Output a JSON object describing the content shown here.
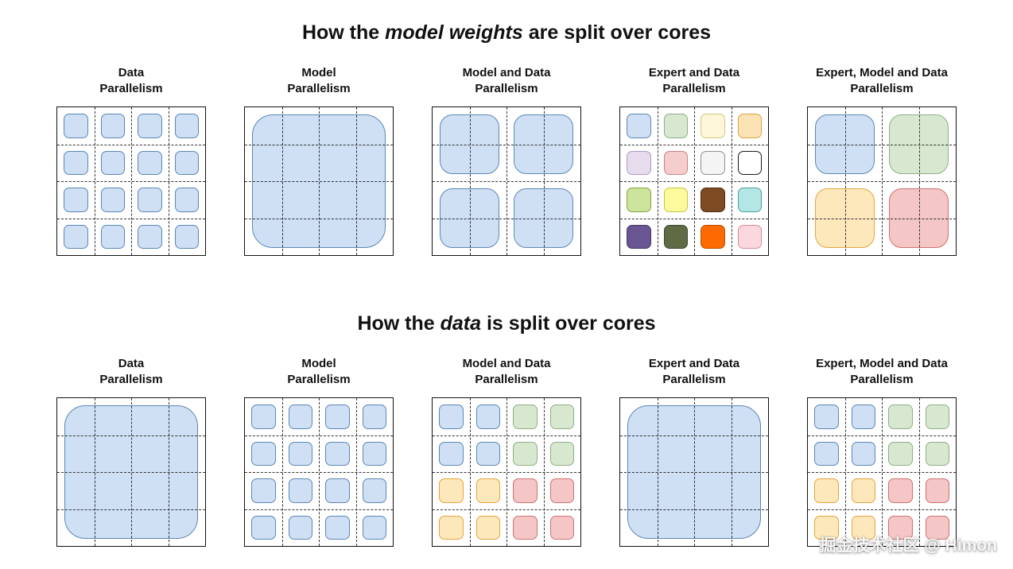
{
  "watermark": "掘金技术社区 @ Himon",
  "palette": {
    "blue": {
      "fill": "#cfe0f5",
      "border": "#5b87b5"
    },
    "green": {
      "fill": "#d8e8d0",
      "border": "#8fae85"
    },
    "cream": {
      "fill": "#fdf6d8",
      "border": "#d8c87e"
    },
    "peach": {
      "fill": "#fbe3b5",
      "border": "#e0a23e"
    },
    "lavender": {
      "fill": "#e6dcee",
      "border": "#af96c9"
    },
    "rose": {
      "fill": "#f5cdcd",
      "border": "#cb7f7f"
    },
    "lightgray": {
      "fill": "#f4f4f4",
      "border": "#8f8f8f"
    },
    "white": {
      "fill": "#ffffff",
      "border": "#1a1a1a"
    },
    "yellowgreen": {
      "fill": "#cde49d",
      "border": "#86a23e"
    },
    "yellow": {
      "fill": "#fbfa9d",
      "border": "#c9c33f"
    },
    "brown": {
      "fill": "#7e4a21",
      "border": "#4f2b10"
    },
    "cyan": {
      "fill": "#b2e7e6",
      "border": "#4f9ba0"
    },
    "purple": {
      "fill": "#6a5693",
      "border": "#453764"
    },
    "olive": {
      "fill": "#5e6b45",
      "border": "#3c4628"
    },
    "brightorange": {
      "fill": "#fd6a02",
      "border": "#b84d00"
    },
    "pink": {
      "fill": "#fad8de",
      "border": "#d98a9c"
    },
    "amber": {
      "fill": "#fde8bb",
      "border": "#e8a33d"
    },
    "red": {
      "fill": "#f5c6c6",
      "border": "#cf7171"
    }
  },
  "sections": [
    {
      "title": {
        "prefix": "How the ",
        "emphasis": "model weights",
        "suffix": " are split over cores"
      },
      "panels": [
        {
          "label_line1": "Data",
          "label_line2": "Parallelism",
          "pattern": {
            "kind": "uniform16",
            "color": "blue"
          }
        },
        {
          "label_line1": "Model",
          "label_line2": "Parallelism",
          "pattern": {
            "kind": "full",
            "color": "blue"
          }
        },
        {
          "label_line1": "Model and Data",
          "label_line2": "Parallelism",
          "pattern": {
            "kind": "quad",
            "colors": [
              "blue",
              "blue",
              "blue",
              "blue"
            ]
          }
        },
        {
          "label_line1": "Expert and Data",
          "label_line2": "Parallelism",
          "pattern": {
            "kind": "grid16",
            "colors": [
              [
                "blue",
                "green",
                "cream",
                "peach"
              ],
              [
                "lavender",
                "rose",
                "lightgray",
                "white"
              ],
              [
                "yellowgreen",
                "yellow",
                "brown",
                "cyan"
              ],
              [
                "purple",
                "olive",
                "brightorange",
                "pink"
              ]
            ]
          }
        },
        {
          "label_line1": "Expert, Model and Data",
          "label_line2": "Parallelism",
          "pattern": {
            "kind": "quad",
            "colors": [
              "blue",
              "green",
              "amber",
              "red"
            ]
          }
        }
      ]
    },
    {
      "title": {
        "prefix": "How the ",
        "emphasis": "data",
        "suffix": " is split over cores"
      },
      "panels": [
        {
          "label_line1": "Data",
          "label_line2": "Parallelism",
          "pattern": {
            "kind": "full",
            "color": "blue"
          }
        },
        {
          "label_line1": "Model",
          "label_line2": "Parallelism",
          "pattern": {
            "kind": "uniform16",
            "color": "blue"
          }
        },
        {
          "label_line1": "Model and Data",
          "label_line2": "Parallelism",
          "pattern": {
            "kind": "grid16",
            "colors": [
              [
                "blue",
                "blue",
                "green",
                "green"
              ],
              [
                "blue",
                "blue",
                "green",
                "green"
              ],
              [
                "amber",
                "amber",
                "red",
                "red"
              ],
              [
                "amber",
                "amber",
                "red",
                "red"
              ]
            ]
          }
        },
        {
          "label_line1": "Expert and Data",
          "label_line2": "Parallelism",
          "pattern": {
            "kind": "full",
            "color": "blue"
          }
        },
        {
          "label_line1": "Expert, Model and Data",
          "label_line2": "Parallelism",
          "pattern": {
            "kind": "grid16",
            "colors": [
              [
                "blue",
                "blue",
                "green",
                "green"
              ],
              [
                "blue",
                "blue",
                "green",
                "green"
              ],
              [
                "amber",
                "amber",
                "red",
                "red"
              ],
              [
                "amber",
                "amber",
                "red",
                "red"
              ]
            ]
          }
        }
      ]
    }
  ]
}
